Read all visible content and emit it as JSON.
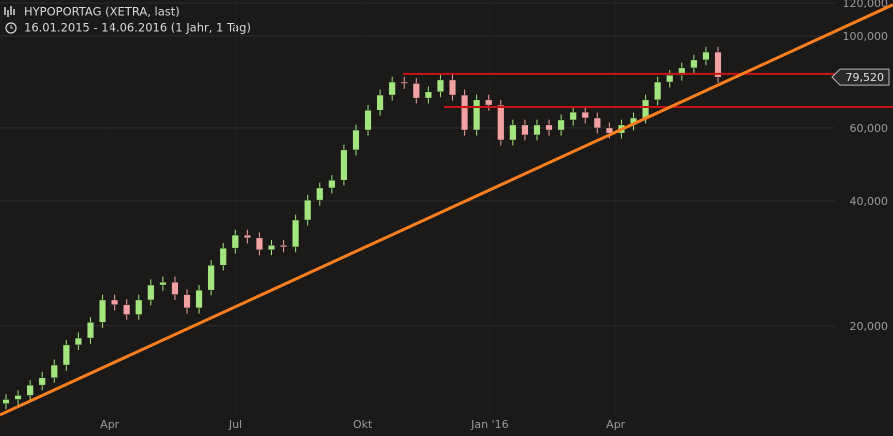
{
  "chart_data": {
    "type": "candlestick",
    "title": "HYPOPORTAG (XETRA, last)",
    "subtitle": "16.01.2015 - 14.06.2016 (1 Jahr, 1 Tag)",
    "log_scale": true,
    "grid": true,
    "xlim": [
      "2015-01-16",
      "2016-06-14"
    ],
    "xticks": [
      {
        "value": "2015-04-01",
        "label": "Apr"
      },
      {
        "value": "2015-07-01",
        "label": "Jul"
      },
      {
        "value": "2015-10-01",
        "label": "Okt"
      },
      {
        "value": "2016-01-01",
        "label": "Jan '16"
      },
      {
        "value": "2016-04-01",
        "label": "Apr"
      }
    ],
    "ylim": [
      10860,
      122000
    ],
    "yticks": [
      {
        "value": 20000,
        "label": "20,000"
      },
      {
        "value": 40000,
        "label": "40,000"
      },
      {
        "value": 60000,
        "label": "60,000"
      },
      {
        "value": 100000,
        "label": "100,000"
      },
      {
        "value": 120000,
        "label": "120,000"
      }
    ],
    "up_color": "#a3e67f",
    "down_color": "#f2a2a2",
    "candles": [
      [
        13000,
        13700,
        12600,
        13300
      ],
      [
        13300,
        14000,
        12900,
        13600
      ],
      [
        13600,
        14800,
        13200,
        14400
      ],
      [
        14400,
        15500,
        14000,
        15000
      ],
      [
        15000,
        16600,
        14600,
        16100
      ],
      [
        16100,
        18500,
        15600,
        18000
      ],
      [
        18000,
        19300,
        17500,
        18700
      ],
      [
        18700,
        21000,
        18100,
        20400
      ],
      [
        20400,
        23800,
        19800,
        23100
      ],
      [
        23100,
        23800,
        21800,
        22500
      ],
      [
        22500,
        23200,
        20700,
        21300
      ],
      [
        21300,
        23800,
        20700,
        23100
      ],
      [
        23100,
        25900,
        22400,
        25100
      ],
      [
        25100,
        26300,
        24300,
        25500
      ],
      [
        25500,
        26300,
        23100,
        23800
      ],
      [
        23800,
        24500,
        21400,
        22100
      ],
      [
        22100,
        25100,
        21400,
        24400
      ],
      [
        24400,
        28800,
        23700,
        28000
      ],
      [
        28000,
        31700,
        27200,
        30800
      ],
      [
        30800,
        34100,
        29900,
        33100
      ],
      [
        33100,
        34100,
        31600,
        32600
      ],
      [
        32600,
        33600,
        29600,
        30500
      ],
      [
        30500,
        32200,
        29600,
        31300
      ],
      [
        31300,
        32200,
        30100,
        31000
      ],
      [
        31000,
        37100,
        30100,
        36000
      ],
      [
        36000,
        41400,
        34900,
        40200
      ],
      [
        40200,
        44300,
        39000,
        43000
      ],
      [
        43000,
        46200,
        41700,
        44900
      ],
      [
        44900,
        54700,
        43600,
        53100
      ],
      [
        53100,
        61100,
        51500,
        59300
      ],
      [
        59300,
        68200,
        57500,
        66200
      ],
      [
        66200,
        74200,
        64200,
        72000
      ],
      [
        72000,
        79700,
        69800,
        77400
      ],
      [
        77400,
        79700,
        74500,
        76800
      ],
      [
        76800,
        79100,
        68700,
        70800
      ],
      [
        70800,
        75500,
        68700,
        73300
      ],
      [
        73300,
        80600,
        71100,
        78300
      ],
      [
        78300,
        80600,
        69800,
        72000
      ],
      [
        72000,
        74200,
        57500,
        59300
      ],
      [
        59300,
        72200,
        57500,
        70100
      ],
      [
        70100,
        72200,
        66100,
        68100
      ],
      [
        68100,
        70100,
        54400,
        56100
      ],
      [
        56100,
        62800,
        54400,
        61000
      ],
      [
        61000,
        62800,
        56000,
        57700
      ],
      [
        57700,
        62800,
        56000,
        61000
      ],
      [
        61000,
        62800,
        57500,
        59300
      ],
      [
        59300,
        64600,
        57500,
        62700
      ],
      [
        62700,
        67500,
        60800,
        65500
      ],
      [
        65500,
        67500,
        61500,
        63400
      ],
      [
        63400,
        65300,
        58200,
        60000
      ],
      [
        60000,
        61800,
        56600,
        58300
      ],
      [
        58300,
        62800,
        56600,
        61000
      ],
      [
        61000,
        65300,
        59200,
        63400
      ],
      [
        63400,
        72200,
        61500,
        70100
      ],
      [
        70100,
        79700,
        68000,
        77400
      ],
      [
        77400,
        82800,
        75100,
        80400
      ],
      [
        80400,
        86200,
        78000,
        83700
      ],
      [
        83700,
        90100,
        81200,
        87500
      ],
      [
        87500,
        94100,
        84900,
        91400
      ],
      [
        91400,
        94100,
        77100,
        79520
      ]
    ],
    "last_price": {
      "value": 79520,
      "label": "79,520"
    },
    "levels": [
      {
        "value": 81000,
        "color": "#c81414"
      },
      {
        "value": 67400,
        "color": "#c81414"
      }
    ],
    "trendline": {
      "values": [
        12400,
        76100
      ],
      "color": "#ff7f1e"
    }
  }
}
